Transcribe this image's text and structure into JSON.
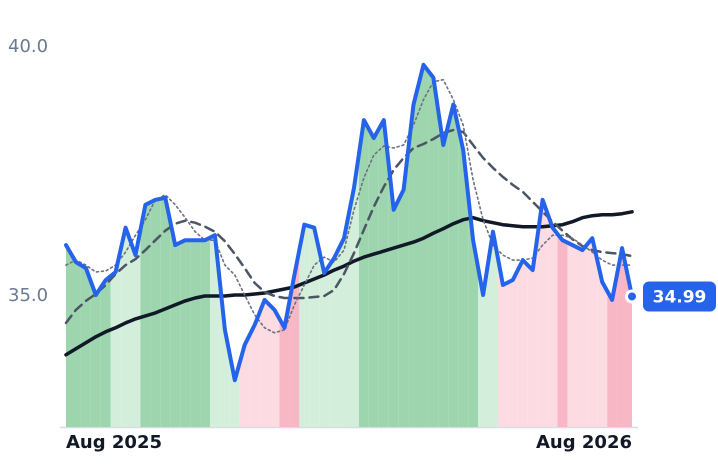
{
  "chart_data": {
    "type": "line",
    "categories": [
      "Aug 2025",
      null,
      null,
      null,
      null,
      null,
      null,
      null,
      null,
      null,
      null,
      null,
      null,
      null,
      null,
      null,
      null,
      null,
      null,
      null,
      null,
      null,
      null,
      null,
      null,
      null,
      null,
      null,
      null,
      null,
      null,
      null,
      null,
      null,
      null,
      null,
      null,
      null,
      null,
      null,
      null,
      null,
      null,
      null,
      null,
      null,
      null,
      null,
      null,
      null,
      null,
      null,
      null,
      null,
      null,
      null,
      null,
      "Aug 2026"
    ],
    "series": [
      {
        "color": "#2563eb",
        "style": "solid",
        "width": 4,
        "values": [
          36.02,
          35.68,
          35.56,
          35.02,
          35.32,
          35.48,
          36.37,
          35.82,
          36.83,
          36.93,
          36.97,
          36.02,
          36.12,
          36.12,
          36.12,
          36.22,
          34.32,
          33.31,
          34.02,
          34.42,
          34.92,
          34.72,
          34.36,
          35.42,
          36.43,
          36.37,
          35.46,
          35.76,
          36.16,
          37.17,
          38.53,
          38.17,
          38.53,
          36.73,
          37.13,
          38.84,
          39.64,
          39.38,
          38.03,
          38.84,
          37.93,
          36.12,
          35.02,
          36.29,
          35.22,
          35.32,
          35.72,
          35.52,
          36.93,
          36.37,
          36.12,
          36.02,
          35.92,
          36.16,
          35.28,
          34.92,
          35.96,
          34.99
        ]
      },
      {
        "color": "#6b7280",
        "style": "dotted",
        "width": 1.6,
        "values": [
          35.62,
          35.72,
          35.62,
          35.48,
          35.5,
          35.62,
          35.88,
          36.22,
          36.53,
          36.93,
          37.03,
          36.83,
          36.57,
          36.29,
          36.12,
          36.12,
          35.62,
          35.42,
          35.02,
          34.62,
          34.36,
          34.26,
          34.32,
          34.82,
          35.22,
          35.62,
          35.78,
          35.68,
          35.92,
          36.73,
          37.37,
          37.83,
          38.01,
          37.97,
          38.03,
          38.43,
          38.94,
          39.3,
          39.34,
          38.94,
          38.43,
          37.33,
          36.53,
          36.02,
          35.82,
          35.72,
          35.72,
          35.76,
          36.02,
          36.22,
          36.22,
          36.16,
          36.02,
          35.88,
          35.72,
          35.62,
          35.62,
          35.62
        ]
      },
      {
        "color": "#4b5563",
        "style": "dashed",
        "width": 2.5,
        "values": [
          34.46,
          34.72,
          34.9,
          35.04,
          35.22,
          35.44,
          35.62,
          35.74,
          35.92,
          36.12,
          36.31,
          36.45,
          36.51,
          36.47,
          36.39,
          36.29,
          36.1,
          35.84,
          35.56,
          35.26,
          35.08,
          35.0,
          34.96,
          34.96,
          34.96,
          34.98,
          35.0,
          35.12,
          35.44,
          35.86,
          36.33,
          36.79,
          37.19,
          37.53,
          37.77,
          37.97,
          38.05,
          38.15,
          38.27,
          38.33,
          38.29,
          38.03,
          37.77,
          37.57,
          37.39,
          37.23,
          37.09,
          36.89,
          36.69,
          36.49,
          36.31,
          36.14,
          36.0,
          35.92,
          35.88,
          35.86,
          35.84,
          35.8
        ]
      },
      {
        "color": "#111827",
        "style": "solid",
        "width": 3.5,
        "values": [
          33.82,
          33.94,
          34.06,
          34.18,
          34.28,
          34.36,
          34.46,
          34.54,
          34.6,
          34.66,
          34.74,
          34.82,
          34.9,
          34.96,
          35.0,
          35.0,
          35.0,
          35.02,
          35.02,
          35.04,
          35.06,
          35.1,
          35.14,
          35.18,
          35.26,
          35.34,
          35.42,
          35.52,
          35.6,
          35.7,
          35.78,
          35.84,
          35.9,
          35.96,
          36.02,
          36.08,
          36.16,
          36.26,
          36.35,
          36.45,
          36.53,
          36.57,
          36.51,
          36.47,
          36.43,
          36.41,
          36.39,
          36.39,
          36.39,
          36.41,
          36.43,
          36.49,
          36.57,
          36.61,
          36.63,
          36.63,
          36.65,
          36.69
        ]
      }
    ],
    "area_colors": [
      "#9dd5ae",
      "#9dd5ae",
      "#9dd5ae",
      "#9dd5ae",
      "#9dd5ae",
      "#d3eedb",
      "#d3eedb",
      "#d3eedb",
      "#9dd5ae",
      "#9dd5ae",
      "#9dd5ae",
      "#9dd5ae",
      "#9dd5ae",
      "#9dd5ae",
      "#9dd5ae",
      "#d3eedb",
      "#d3eedb",
      "#d3eedb",
      "#fcdce2",
      "#fcdce2",
      "#fcdce2",
      "#fcdce2",
      "#f8b7c4",
      "#f8b7c4",
      "#d3eedb",
      "#d3eedb",
      "#d3eedb",
      "#d3eedb",
      "#d3eedb",
      "#d3eedb",
      "#9dd5ae",
      "#9dd5ae",
      "#9dd5ae",
      "#9dd5ae",
      "#9dd5ae",
      "#9dd5ae",
      "#9dd5ae",
      "#9dd5ae",
      "#9dd5ae",
      "#9dd5ae",
      "#9dd5ae",
      "#9dd5ae",
      "#d3eedb",
      "#d3eedb",
      "#fcdce2",
      "#fcdce2",
      "#fcdce2",
      "#fcdce2",
      "#fcdce2",
      "#fcdce2",
      "#f8b7c4",
      "#fcdce2",
      "#fcdce2",
      "#fcdce2",
      "#fcdce2",
      "#f8b7c4",
      "#f8b7c4",
      "#f8b7c4"
    ],
    "ylim": [
      32.37,
      40.94
    ],
    "yticks": [
      {
        "value": 35,
        "label": "35.0"
      },
      {
        "value": 40,
        "label": "40.0"
      }
    ],
    "grid": false
  }
}
